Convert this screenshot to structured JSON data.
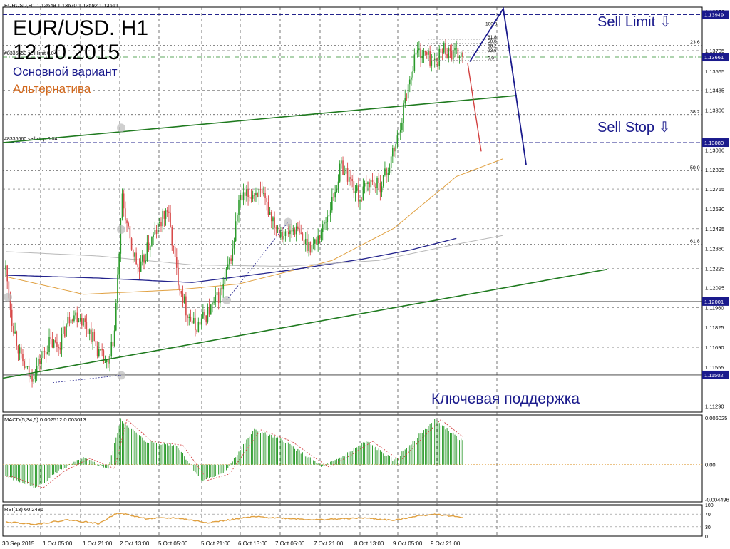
{
  "header": {
    "symbol_info": "EURUSD,H1  1.13649 1.13670 1.13592 1.13661",
    "order_limit_label": "#8336653 sell limit 0.04",
    "order_stop_label": "#8336660 sell stop 0.04"
  },
  "annotations": {
    "title": "EUR/USD. H1",
    "date": "12.10.2015",
    "main_scenario": "Основной вариант",
    "alternative": "Альтернатива",
    "sell_limit": "Sell Limit ⇩",
    "sell_stop": "Sell Stop ⇩",
    "key_support": "Ключевая поддержка"
  },
  "colors": {
    "bull": "#2a9a2a",
    "bear": "#d84a4a",
    "trendline": "#1f7a1f",
    "scenario_main": "#1a1a8c",
    "scenario_alt": "#d24040",
    "ma_fast": "#e0a040",
    "ma_slow": "#23238c",
    "ma_long": "#b8b8b8",
    "macd_line": "#d24040",
    "rsi_line": "#e0a040",
    "price_label_bg": "#1a1a8c"
  },
  "chart_data": [
    {
      "type": "candlestick",
      "title": "EUR/USD. H1",
      "x_tick_labels": [
        "30 Sep 2015",
        "1 Oct 05:00",
        "1 Oct 21:00",
        "2 Oct 13:00",
        "5 Oct 05:00",
        "5 Oct 21:00",
        "6 Oct 13:00",
        "7 Oct 05:00",
        "7 Oct 21:00",
        "8 Oct 13:00",
        "9 Oct 05:00",
        "9 Oct 21:00"
      ],
      "y_tick_labels": [
        "1.13970",
        "1.13705",
        "1.13565",
        "1.13435",
        "1.13300",
        "1.13030",
        "1.12895",
        "1.12765",
        "1.12630",
        "1.12495",
        "1.12360",
        "1.12225",
        "1.12095",
        "1.11960",
        "1.11825",
        "1.11690",
        "1.11555",
        "1.11290"
      ],
      "ylim": [
        1.1125,
        1.14
      ],
      "price_tags": [
        {
          "label": "1.13949",
          "value": 1.13949
        },
        {
          "label": "1.13661",
          "value": 1.13661
        },
        {
          "label": "1.13080",
          "value": 1.1308
        },
        {
          "label": "1.12001",
          "value": 1.12001
        },
        {
          "label": "1.11502",
          "value": 1.11502
        }
      ],
      "fibonacci_left": [
        {
          "label": "23.6",
          "value": 1.1374
        },
        {
          "label": "38.2",
          "value": 1.1327
        },
        {
          "label": "50.0",
          "value": 1.1289
        },
        {
          "label": "61.8",
          "value": 1.1239
        }
      ],
      "fibonacci_right": [
        "100.0",
        "61.8",
        "50.0",
        "38.2",
        "23.6",
        "0.0"
      ],
      "close_path": [
        [
          0,
          1.1222
        ],
        [
          4,
          1.1188
        ],
        [
          10,
          1.116
        ],
        [
          16,
          1.1148
        ],
        [
          21,
          1.1158
        ],
        [
          28,
          1.1172
        ],
        [
          34,
          1.117
        ],
        [
          42,
          1.1192
        ],
        [
          48,
          1.119
        ],
        [
          55,
          1.1178
        ],
        [
          60,
          1.1165
        ],
        [
          66,
          1.1155
        ],
        [
          70,
          1.118
        ],
        [
          75,
          1.127
        ],
        [
          80,
          1.124
        ],
        [
          86,
          1.122
        ],
        [
          92,
          1.1238
        ],
        [
          98,
          1.125
        ],
        [
          104,
          1.1263
        ],
        [
          110,
          1.122
        ],
        [
          116,
          1.1195
        ],
        [
          122,
          1.1182
        ],
        [
          128,
          1.119
        ],
        [
          134,
          1.1198
        ],
        [
          140,
          1.121
        ],
        [
          146,
          1.1235
        ],
        [
          150,
          1.1268
        ],
        [
          156,
          1.1272
        ],
        [
          162,
          1.1275
        ],
        [
          168,
          1.1265
        ],
        [
          174,
          1.1252
        ],
        [
          180,
          1.1245
        ],
        [
          186,
          1.125
        ],
        [
          192,
          1.124
        ],
        [
          198,
          1.1238
        ],
        [
          204,
          1.125
        ],
        [
          210,
          1.1268
        ],
        [
          216,
          1.1293
        ],
        [
          222,
          1.1282
        ],
        [
          228,
          1.127
        ],
        [
          234,
          1.1282
        ],
        [
          240,
          1.1278
        ],
        [
          246,
          1.129
        ],
        [
          252,
          1.131
        ],
        [
          258,
          1.1342
        ],
        [
          264,
          1.137
        ],
        [
          270,
          1.1368
        ],
        [
          276,
          1.1362
        ],
        [
          282,
          1.1372
        ],
        [
          288,
          1.1368
        ],
        [
          294,
          1.1366
        ]
      ],
      "moving_averages": [
        {
          "name": "fast",
          "values": [
            [
              0,
              1.1217
            ],
            [
              50,
              1.1205
            ],
            [
              110,
              1.1208
            ],
            [
              150,
              1.1212
            ],
            [
              210,
              1.1228
            ],
            [
              250,
              1.125
            ],
            [
              290,
              1.1285
            ],
            [
              320,
              1.1297
            ]
          ]
        },
        {
          "name": "slow",
          "values": [
            [
              0,
              1.1218
            ],
            [
              60,
              1.1216
            ],
            [
              120,
              1.1213
            ],
            [
              180,
              1.1221
            ],
            [
              230,
              1.1229
            ],
            [
              260,
              1.1235
            ],
            [
              290,
              1.1243
            ]
          ]
        },
        {
          "name": "long",
          "values": [
            [
              0,
              1.1234
            ],
            [
              60,
              1.1231
            ],
            [
              120,
              1.1225
            ],
            [
              180,
              1.1224
            ],
            [
              240,
              1.1228
            ],
            [
              290,
              1.1239
            ],
            [
              320,
              1.1245
            ]
          ]
        }
      ],
      "levels": [
        {
          "name": "sell-limit-order",
          "value": 1.13949
        },
        {
          "name": "sell-stop-order",
          "value": 1.1308
        },
        {
          "name": "key-support",
          "value": 1.11502
        },
        {
          "name": "level",
          "value": 1.12001
        }
      ]
    },
    {
      "type": "bar",
      "title": "MACD(5,34,5) 0.002512 0.003013",
      "y_tick_labels": [
        "0.006025",
        "0.00",
        "-0.004496"
      ],
      "ylim": [
        -0.0048,
        0.0064
      ],
      "values_path": [
        [
          0,
          -0.0015
        ],
        [
          20,
          -0.003
        ],
        [
          34,
          -0.0008
        ],
        [
          50,
          0.0008
        ],
        [
          66,
          -0.0005
        ],
        [
          74,
          0.0058
        ],
        [
          90,
          0.003
        ],
        [
          110,
          0.0025
        ],
        [
          126,
          -0.002
        ],
        [
          140,
          -0.0012
        ],
        [
          160,
          0.0045
        ],
        [
          180,
          0.003
        ],
        [
          194,
          0.001
        ],
        [
          204,
          -0.0003
        ],
        [
          218,
          0.0012
        ],
        [
          232,
          0.003
        ],
        [
          250,
          0.0005
        ],
        [
          262,
          0.003
        ],
        [
          276,
          0.0058
        ],
        [
          294,
          0.003
        ]
      ]
    },
    {
      "type": "line",
      "title": "RSI(13) 60.2486",
      "y_tick_labels": [
        "100",
        "70",
        "30",
        "0"
      ],
      "ylim": [
        0,
        100
      ],
      "values_path": [
        [
          0,
          45
        ],
        [
          20,
          38
        ],
        [
          40,
          52
        ],
        [
          60,
          40
        ],
        [
          72,
          75
        ],
        [
          90,
          56
        ],
        [
          110,
          58
        ],
        [
          130,
          43
        ],
        [
          160,
          62
        ],
        [
          200,
          52
        ],
        [
          230,
          58
        ],
        [
          250,
          50
        ],
        [
          264,
          64
        ],
        [
          276,
          70
        ],
        [
          294,
          60
        ]
      ]
    }
  ]
}
